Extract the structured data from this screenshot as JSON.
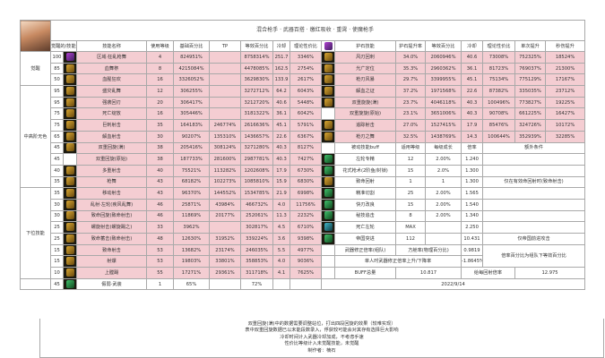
{
  "title": "混合枪手 · 武器百搭 · 缴红吸收 · 重霄 · 使魔枪手",
  "left_headers": [
    "觉醒的/技能百分比",
    "技能名称",
    "使用等级",
    "基础百分比",
    "TP",
    "等效百分比",
    "冷却",
    "理论性价比"
  ],
  "right_headers": [
    "护石技能",
    "护石提升率",
    "等效百分比",
    "冷却",
    "理论性价比",
    "单次提升",
    "秒伤提升"
  ],
  "groups": [
    "觉醒",
    "中高阶无色",
    "下位技能"
  ],
  "left_rows": [
    {
      "lv": "100",
      "name": "区域·狂乱枪舞",
      "use": "4",
      "base": "824951%",
      "tp": "",
      "eq": "8758314%",
      "cd": "251.7",
      "ratio": "3346%",
      "icon": "ic-purple"
    },
    {
      "lv": "85",
      "name": "血舞祭",
      "use": "8",
      "base": "4215084%",
      "tp": "",
      "eq": "4478085%",
      "cd": "162.5",
      "ratio": "2754%",
      "icon": "ic-gold"
    },
    {
      "lv": "50",
      "name": "血腥狂欢",
      "use": "16",
      "base": "3326052%",
      "tp": "",
      "eq": "3629830%",
      "cd": "133.9",
      "ratio": "2617%",
      "icon": "ic-gold"
    },
    {
      "lv": "95",
      "name": "盛灾乱舞",
      "use": "12",
      "base": "306255%",
      "tp": "",
      "eq": "3272712%",
      "cd": "64.2",
      "ratio": "6043%",
      "icon": "ic-gold"
    },
    {
      "lv": "95",
      "name": "强袭回刃",
      "use": "20",
      "base": "306417%",
      "tp": "",
      "eq": "3212720%",
      "cd": "40.6",
      "ratio": "5448%",
      "icon": "ic-gold"
    },
    {
      "lv": "75",
      "name": "死亡绽放",
      "use": "16",
      "base": "305446%",
      "tp": "",
      "eq": "3181322%",
      "cd": "36.1",
      "ratio": "6042%",
      "icon": "ic-gold"
    },
    {
      "lv": "75",
      "name": "巨刺射击",
      "use": "35",
      "base": "164183%",
      "tp": "246774%",
      "eq": "2616636%",
      "cd": "45.1",
      "ratio": "5791%",
      "icon": "ic-gold"
    },
    {
      "lv": "65",
      "name": "解血射击",
      "use": "30",
      "base": "90207%",
      "tp": "135310%",
      "eq": "1436657%",
      "cd": "22.6",
      "ratio": "6367%",
      "icon": "ic-gold"
    },
    {
      "lv": "45",
      "name": "双重回旋(满)",
      "use": "38",
      "base": "205416%",
      "tp": "308124%",
      "eq": "3271280%",
      "cd": "40.3",
      "ratio": "8127%",
      "icon": "ic-gold"
    },
    {
      "lv": "45",
      "name": "双重回旋(原始)",
      "use": "38",
      "base": "187733%",
      "tp": "281600%",
      "eq": "2987781%",
      "cd": "40.3",
      "ratio": "7427%",
      "icon": ""
    },
    {
      "lv": "40",
      "name": "多重射击",
      "use": "40",
      "base": "75521%",
      "tp": "113282%",
      "eq": "1202608%",
      "cd": "17.9",
      "ratio": "6730%",
      "icon": "ic-gold"
    },
    {
      "lv": "35",
      "name": "枪舞",
      "use": "43",
      "base": "68182%",
      "tp": "102273%",
      "eq": "1085810%",
      "cd": "15.9",
      "ratio": "6830%",
      "icon": "ic-gold"
    },
    {
      "lv": "35",
      "name": "移动射击",
      "use": "43",
      "base": "96370%",
      "tp": "144552%",
      "eq": "1534785%",
      "cd": "21.9",
      "ratio": "6998%",
      "icon": "ic-gold"
    },
    {
      "lv": "30",
      "name": "乱射·左轮(疾风乱舞)",
      "use": "46",
      "base": "25871%",
      "tp": "43984%",
      "eq": "466732%",
      "cd": "4.0",
      "ratio": "11756%",
      "icon": "ic-gold"
    },
    {
      "lv": "30",
      "name": "致命回旋(致命射击)",
      "use": "46",
      "base": "11869%",
      "tp": "20177%",
      "eq": "252061%",
      "cd": "11.3",
      "ratio": "2232%",
      "icon": "ic-gold"
    },
    {
      "lv": "25",
      "name": "螺旋射击(螺旋踢之)",
      "use": "33",
      "base": "3962%",
      "tp": "",
      "eq": "302817%",
      "cd": "4.5",
      "ratio": "6710%",
      "icon": "ic-gold"
    },
    {
      "lv": "25",
      "name": "致命蓄击(致命射击)",
      "use": "48",
      "base": "12630%",
      "tp": "31952%",
      "eq": "339224%",
      "cd": "3.6",
      "ratio": "9398%",
      "icon": "ic-gold"
    },
    {
      "lv": "15",
      "name": "致命射击",
      "use": "53",
      "base": "13682%",
      "tp": "23174%",
      "eq": "246035%",
      "cd": "5.5",
      "ratio": "4977%",
      "icon": "ic-gold"
    },
    {
      "lv": "15",
      "name": "射爆",
      "use": "53",
      "base": "19803%",
      "tp": "33801%",
      "eq": "358853%",
      "cd": "4.0",
      "ratio": "9036%",
      "icon": "ic-gold"
    },
    {
      "lv": "10",
      "name": "上膛踢",
      "use": "55",
      "base": "17271%",
      "tp": "29361%",
      "eq": "311718%",
      "cd": "4.1",
      "ratio": "7625%",
      "icon": "ic-gold"
    },
    {
      "lv": "45",
      "name": "假弱·武装",
      "use": "1",
      "base": "65%",
      "tp": "",
      "eq": "72%",
      "cd": "",
      "ratio": "",
      "icon": "ic-green"
    }
  ],
  "right_rows": [
    {
      "name": "风刃回刺",
      "rate": "34.0%",
      "eq": "2060946%",
      "cd": "40.6",
      "ratio": "73008%",
      "single": "752325%",
      "dps": "18524%",
      "icon": "ic-gold"
    },
    {
      "name": "光广定位",
      "rate": "35.3%",
      "eq": "2960362%",
      "cd": "36.1",
      "ratio": "81723%",
      "single": "769037%",
      "dps": "21300%",
      "icon": "ic-gold"
    },
    {
      "name": "枪刃风暴",
      "rate": "29.7%",
      "eq": "3399955%",
      "cd": "45.1",
      "ratio": "75134%",
      "single": "775129%",
      "dps": "17167%",
      "icon": "ic-gold"
    },
    {
      "name": "解血之证",
      "rate": "37.2%",
      "eq": "1971568%",
      "cd": "22.6",
      "ratio": "87382%",
      "single": "335035%",
      "dps": "23712%",
      "icon": "ic-gold"
    },
    {
      "name": "双重旋旋(满)",
      "rate": "23.7%",
      "eq": "4046118%",
      "cd": "40.3",
      "ratio": "100496%",
      "single": "773827%",
      "dps": "19225%",
      "icon": "ic-gold"
    },
    {
      "name": "双重旋旋(原始)",
      "rate": "23.1%",
      "eq": "3651006%",
      "cd": "40.3",
      "ratio": "90708%",
      "single": "661225%",
      "dps": "16427%",
      "icon": ""
    },
    {
      "name": "追踪射击",
      "rate": "27.0%",
      "eq": "1527415%",
      "cd": "17.9",
      "ratio": "85476%",
      "single": "324726%",
      "dps": "10172%",
      "icon": "ic-gold"
    },
    {
      "name": "枪刃之舞",
      "rate": "32.5%",
      "eq": "1438769%",
      "cd": "14.3",
      "ratio": "100644%",
      "single": "352939%",
      "dps": "32285%",
      "icon": "ic-gold"
    }
  ],
  "passive_headers": [
    "被动技能buff",
    "适用等级",
    "每级成长",
    "倍率",
    "额外条件"
  ],
  "passive_rows": [
    {
      "name": "左轮专精",
      "lv": "12",
      "grow": "2.00%",
      "mult": "1.240",
      "note": "",
      "icon": "ic-green"
    },
    {
      "name": "花式枪术(2阶鱼/封锁)",
      "lv": "15",
      "grow": "2.0%",
      "mult": "1.300",
      "note": "",
      "icon": "ic-green"
    },
    {
      "name": "致命回射",
      "lv": "1",
      "grow": "1",
      "mult": "1.300",
      "note": "仅在有效命回射时(致命射击)",
      "icon": "ic-gold"
    },
    {
      "name": "精准切割",
      "lv": "25",
      "grow": "2.00%",
      "mult": "1.565",
      "note": "",
      "icon": "ic-green"
    },
    {
      "name": "快刃改良",
      "lv": "15",
      "grow": "2.00%",
      "mult": "1.540",
      "note": "",
      "icon": "ic-green"
    },
    {
      "name": "秘技追击",
      "lv": "8",
      "grow": "2.00%",
      "mult": "1.340",
      "note": "",
      "icon": "ic-green"
    },
    {
      "name": "死亡左轮",
      "lv": "MAX",
      "grow": "",
      "mult": "2.250",
      "note": "",
      "icon": "ic-teal"
    },
    {
      "name": "帝国突进",
      "lv": "112",
      "grow": "",
      "mult": "10.431",
      "note": "仅帝国前进攻击",
      "icon": "ic-green"
    }
  ],
  "weapon": {
    "label": "武器修正倍率(组队)",
    "sub_label": "方舱率(物理百分比)",
    "value": "0.9819",
    "solo_label": "单人时武器修正倍率上升/下降率",
    "solo_value": "-1.8645%",
    "note": "倍率百分比为组队下等效百分比"
  },
  "buff": {
    "label": "BUFF总量",
    "value": "10.817",
    "label2": "给每回射倍率",
    "value2": "12.975"
  },
  "date": "2022/9/14",
  "notes": [
    "双重回旋(满)中的数据需要调整站位，打出四段回旋的效果（较难实现）",
    "表中双重回旋数据已以未能段数录入，俘获较可能会对其存有选择巨大影响",
    "冷却时间计入武器冷却加成，不考虑手速",
    "性价比等级计入未觉醒技能，未觉醒",
    "制作者：楠石"
  ]
}
